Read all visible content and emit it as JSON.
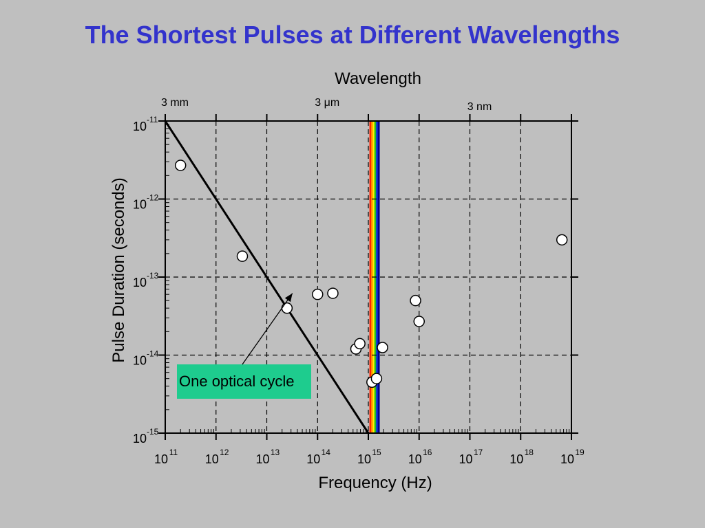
{
  "slide": {
    "title": "The Shortest Pulses at Different Wavelengths"
  },
  "colors": {
    "background": "#bfbfbf",
    "title": "#3333cc",
    "callout": "#1ecc8e",
    "spectrum": [
      "#ff2200",
      "#ff8800",
      "#ffee00",
      "#22bb22",
      "#1133dd",
      "#000088"
    ]
  },
  "chart_data": {
    "type": "scatter",
    "title": "",
    "xlabel": "Frequency (Hz)",
    "ylabel": "Pulse Duration (seconds)",
    "top_axis_label": "Wavelength",
    "x_scale": "log",
    "y_scale": "log",
    "xlim": [
      100000000000.0,
      1e+19
    ],
    "ylim": [
      1e-15,
      1e-11
    ],
    "grid": true,
    "x_ticks": [
      {
        "base": "10",
        "exp": "11"
      },
      {
        "base": "10",
        "exp": "12"
      },
      {
        "base": "10",
        "exp": "13"
      },
      {
        "base": "10",
        "exp": "14"
      },
      {
        "base": "10",
        "exp": "15"
      },
      {
        "base": "10",
        "exp": "16"
      },
      {
        "base": "10",
        "exp": "17"
      },
      {
        "base": "10",
        "exp": "18"
      },
      {
        "base": "10",
        "exp": "19"
      }
    ],
    "y_ticks": [
      {
        "base": "10",
        "exp": "-11"
      },
      {
        "base": "10",
        "exp": "-12"
      },
      {
        "base": "10",
        "exp": "-13"
      },
      {
        "base": "10",
        "exp": "-14"
      },
      {
        "base": "10",
        "exp": "-15"
      }
    ],
    "top_ticks": [
      {
        "label": "3 mm",
        "frequency": 100000000000.0
      },
      {
        "label": "3 μm",
        "frequency": 100000000000000.0
      },
      {
        "label": "3 nm",
        "frequency": 1e+17
      }
    ],
    "visible_spectrum_hz": [
      1050000000000000.0,
      1650000000000000.0
    ],
    "series": [
      {
        "points": [
          {
            "x": 200000000000.0,
            "y": 2.7e-12
          },
          {
            "x": 3300000000000.0,
            "y": 1.85e-13
          },
          {
            "x": 25000000000000.0,
            "y": 4e-14
          },
          {
            "x": 100000000000000.0,
            "y": 6e-14
          },
          {
            "x": 200000000000000.0,
            "y": 6.2e-14
          },
          {
            "x": 570000000000000.0,
            "y": 1.2e-14
          },
          {
            "x": 680000000000000.0,
            "y": 1.4e-14
          },
          {
            "x": 1180000000000000.0,
            "y": 4.5e-15
          },
          {
            "x": 1450000000000000.0,
            "y": 5e-15
          },
          {
            "x": 1900000000000000.0,
            "y": 1.25e-14
          },
          {
            "x": 8500000000000000.0,
            "y": 5e-14
          },
          {
            "x": 1e+16,
            "y": 2.7e-14
          },
          {
            "x": 6.5e+18,
            "y": 3e-13
          }
        ]
      }
    ],
    "reference_line": {
      "label": "One optical cycle",
      "relation": "duration = 1 / frequency",
      "points": [
        {
          "x": 100000000000.0,
          "y": 1e-11
        },
        {
          "x": 1000000000000000.0,
          "y": 1e-15
        }
      ]
    },
    "annotation": {
      "text": "One optical cycle",
      "points_to": {
        "x": 32000000000000.0,
        "y": 6.2e-14
      }
    }
  }
}
